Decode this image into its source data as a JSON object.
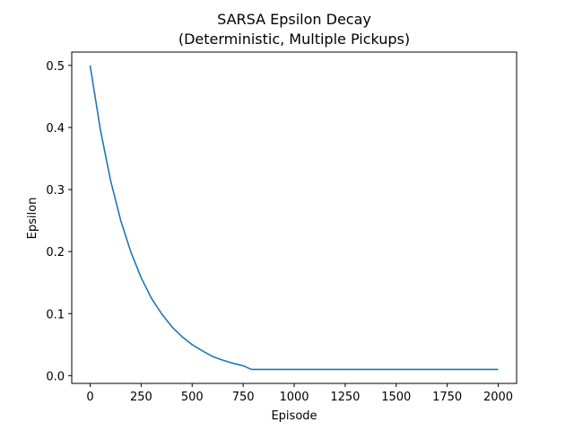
{
  "chart_data": {
    "type": "line",
    "title_line1": "SARSA Epsilon Decay",
    "title_line2": "(Deterministic, Multiple Pickups)",
    "xlabel": "Episode",
    "ylabel": "Epsilon",
    "xlim": [
      -90,
      2090
    ],
    "ylim": [
      -0.0125,
      0.5215
    ],
    "xticks": [
      0,
      250,
      500,
      750,
      1000,
      1250,
      1500,
      1750,
      2000
    ],
    "yticks": [
      0.0,
      0.1,
      0.2,
      0.3,
      0.4,
      0.5
    ],
    "xtick_labels": [
      "0",
      "250",
      "500",
      "750",
      "1000",
      "1250",
      "1500",
      "1750",
      "2000"
    ],
    "ytick_labels": [
      "0.0",
      "0.1",
      "0.2",
      "0.3",
      "0.4",
      "0.5"
    ],
    "grid": false,
    "series": [
      {
        "color": "#1f77b4",
        "x": [
          0,
          50,
          100,
          150,
          200,
          250,
          300,
          350,
          400,
          450,
          500,
          550,
          600,
          650,
          700,
          750,
          790,
          800,
          1000,
          1250,
          1500,
          1750,
          2000
        ],
        "y": [
          0.5,
          0.397,
          0.315,
          0.25,
          0.199,
          0.158,
          0.125,
          0.1,
          0.079,
          0.063,
          0.05,
          0.04,
          0.031,
          0.025,
          0.02,
          0.016,
          0.01,
          0.01,
          0.01,
          0.01,
          0.01,
          0.01,
          0.01
        ]
      }
    ]
  }
}
